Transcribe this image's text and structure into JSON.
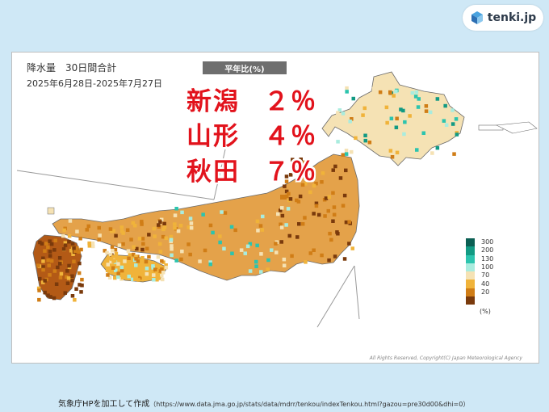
{
  "brand": {
    "name": "tenki.jp"
  },
  "map": {
    "title": "降水量　30日間合計",
    "period": "2025年6月28日-2025年7月27日",
    "badge": "平年比(%)",
    "copyright": "All Rights Reserved, Copyright(C) Japan Meteorological Agency"
  },
  "highlights": [
    {
      "region": "新潟",
      "value": "２％"
    },
    {
      "region": "山形",
      "value": "４％"
    },
    {
      "region": "秋田",
      "value": "７％"
    }
  ],
  "legend": {
    "unit": "(%)",
    "items": [
      {
        "label": "300",
        "color": "#0b5f53"
      },
      {
        "label": "200",
        "color": "#129a83"
      },
      {
        "label": "130",
        "color": "#2cc4ae"
      },
      {
        "label": "100",
        "color": "#a9ecde"
      },
      {
        "label": "70",
        "color": "#f5e2b4"
      },
      {
        "label": "40",
        "color": "#f0b33a"
      },
      {
        "label": "20",
        "color": "#d07d16"
      },
      {
        "label": "",
        "color": "#7a3a0c"
      }
    ]
  },
  "credit": {
    "main": "気象庁HPを加工して作成",
    "url": "（https://www.data.jma.go.jp/stats/data/mdrr/tenkou/indexTenkou.html?gazou=pre30d00&dhi=0）"
  }
}
